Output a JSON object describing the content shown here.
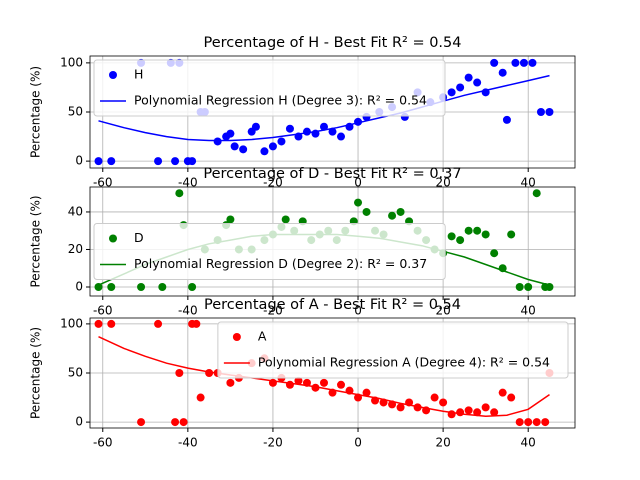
{
  "chart_data": [
    {
      "type": "scatter",
      "title": "Percentage of H - Best Fit R² = 0.54",
      "y_label": "Percentage (%)",
      "xlim": [
        -63,
        51
      ],
      "xticks": [
        -60,
        -40,
        -20,
        0,
        20,
        40
      ],
      "ylim": [
        -7,
        107
      ],
      "yticks": [
        0,
        50,
        100
      ],
      "grid": true,
      "legend": "upper left",
      "series": [
        {
          "name": "H",
          "color": "blue",
          "mark": "scatter",
          "x": [
            -61,
            -58,
            -51,
            -47,
            -44,
            -43,
            -42,
            -40,
            -39,
            -37,
            -36,
            -33,
            -31,
            -30,
            -29,
            -27,
            -25,
            -24,
            -22,
            -20,
            -18,
            -16,
            -14,
            -12,
            -10,
            -8,
            -6,
            -4,
            -2,
            0,
            2,
            5,
            8,
            11,
            14,
            17,
            20,
            22,
            24,
            26,
            28,
            30,
            32,
            34,
            35,
            37,
            39,
            41,
            43,
            45
          ],
          "values": [
            0,
            0,
            100,
            0,
            100,
            0,
            100,
            0,
            0,
            50,
            50,
            20,
            25,
            28,
            15,
            12,
            30,
            35,
            10,
            15,
            20,
            33,
            25,
            30,
            28,
            35,
            30,
            25,
            35,
            40,
            45,
            50,
            55,
            45,
            70,
            60,
            65,
            70,
            75,
            85,
            80,
            70,
            100,
            90,
            42,
            100,
            100,
            100,
            50,
            50
          ]
        },
        {
          "name": "Polynomial Regression H (Degree 3): R² = 0.54",
          "color": "blue",
          "mark": "line",
          "x": [
            -61,
            -55,
            -50,
            -45,
            -40,
            -35,
            -30,
            -25,
            -20,
            -15,
            -10,
            -5,
            0,
            5,
            10,
            15,
            20,
            25,
            30,
            35,
            40,
            45
          ],
          "values": [
            41,
            34,
            29,
            25,
            22,
            21,
            21,
            22,
            24,
            27,
            30,
            34,
            39,
            44,
            49,
            55,
            61,
            67,
            72,
            77,
            82,
            87
          ]
        }
      ]
    },
    {
      "type": "scatter",
      "title": "Percentage of D - Best Fit R² = 0.37",
      "y_label": "Percentage (%)",
      "xlim": [
        -63,
        51
      ],
      "xticks": [
        -60,
        -40,
        -20,
        0,
        20,
        40
      ],
      "ylim": [
        -4.8,
        53.3
      ],
      "yticks": [
        0,
        20,
        40
      ],
      "grid": true,
      "legend": "center left",
      "series": [
        {
          "name": "D",
          "color": "green",
          "mark": "scatter",
          "x": [
            -61,
            -58,
            -51,
            -46,
            -42,
            -41,
            -39,
            -36,
            -33,
            -31,
            -30,
            -28,
            -25,
            -22,
            -20,
            -18,
            -17,
            -15,
            -13,
            -11,
            -9,
            -7,
            -5,
            -3,
            -1,
            0,
            2,
            4,
            6,
            8,
            10,
            12,
            14,
            16,
            18,
            20,
            22,
            24,
            26,
            28,
            30,
            32,
            34,
            36,
            38,
            40,
            42,
            44,
            45
          ],
          "values": [
            0,
            0,
            0,
            0,
            50,
            33,
            0,
            20,
            25,
            33,
            36,
            20,
            20,
            25,
            28,
            32,
            36,
            30,
            35,
            25,
            28,
            30,
            25,
            30,
            35,
            45,
            40,
            30,
            28,
            38,
            40,
            35,
            30,
            25,
            20,
            18,
            27,
            25,
            30,
            30,
            28,
            18,
            10,
            28,
            0,
            0,
            50,
            0,
            0
          ]
        },
        {
          "name": "Polynomial Regression D (Degree 2): R² = 0.37",
          "color": "green",
          "mark": "line",
          "x": [
            -61,
            -55,
            -50,
            -45,
            -40,
            -35,
            -30,
            -25,
            -20,
            -15,
            -10,
            -5,
            0,
            5,
            10,
            15,
            20,
            25,
            30,
            35,
            40,
            45
          ],
          "values": [
            1,
            7,
            12,
            16,
            20,
            23,
            25,
            27,
            28,
            28,
            28,
            28,
            27,
            26,
            24,
            22,
            19,
            16,
            12,
            8,
            4,
            1
          ]
        }
      ]
    },
    {
      "type": "scatter",
      "title": "Percentage of A - Best Fit R² = 0.54",
      "y_label": "Percentage (%)",
      "xlim": [
        -63,
        51
      ],
      "xticks": [
        -60,
        -40,
        -20,
        0,
        20,
        40
      ],
      "ylim": [
        -6,
        106
      ],
      "yticks": [
        0,
        50,
        100
      ],
      "grid": true,
      "legend": "upper right",
      "series": [
        {
          "name": "A",
          "color": "red",
          "mark": "scatter",
          "x": [
            -61,
            -58,
            -51,
            -47,
            -43,
            -42,
            -41,
            -39,
            -38,
            -37,
            -35,
            -33,
            -30,
            -28,
            -25,
            -22,
            -20,
            -18,
            -16,
            -14,
            -12,
            -10,
            -8,
            -6,
            -4,
            -2,
            0,
            2,
            4,
            6,
            8,
            10,
            12,
            14,
            16,
            18,
            20,
            22,
            24,
            26,
            28,
            30,
            32,
            34,
            36,
            38,
            40,
            42,
            44,
            45
          ],
          "values": [
            100,
            100,
            0,
            100,
            0,
            50,
            0,
            100,
            100,
            25,
            50,
            50,
            40,
            45,
            60,
            65,
            40,
            45,
            38,
            42,
            40,
            35,
            40,
            30,
            38,
            32,
            25,
            30,
            22,
            20,
            18,
            15,
            20,
            15,
            12,
            25,
            20,
            8,
            10,
            12,
            10,
            15,
            10,
            30,
            25,
            0,
            0,
            0,
            0,
            50
          ]
        },
        {
          "name": "Polynomial Regression A (Degree 4): R² = 0.54",
          "color": "red",
          "mark": "line",
          "x": [
            -61,
            -55,
            -50,
            -45,
            -40,
            -35,
            -30,
            -25,
            -20,
            -15,
            -10,
            -5,
            0,
            5,
            10,
            15,
            20,
            25,
            30,
            35,
            40,
            45
          ],
          "values": [
            87,
            75,
            67,
            60,
            55,
            51,
            48,
            45,
            42,
            39,
            36,
            32,
            28,
            24,
            19,
            15,
            11,
            8,
            6,
            7,
            13,
            28
          ]
        }
      ]
    }
  ]
}
